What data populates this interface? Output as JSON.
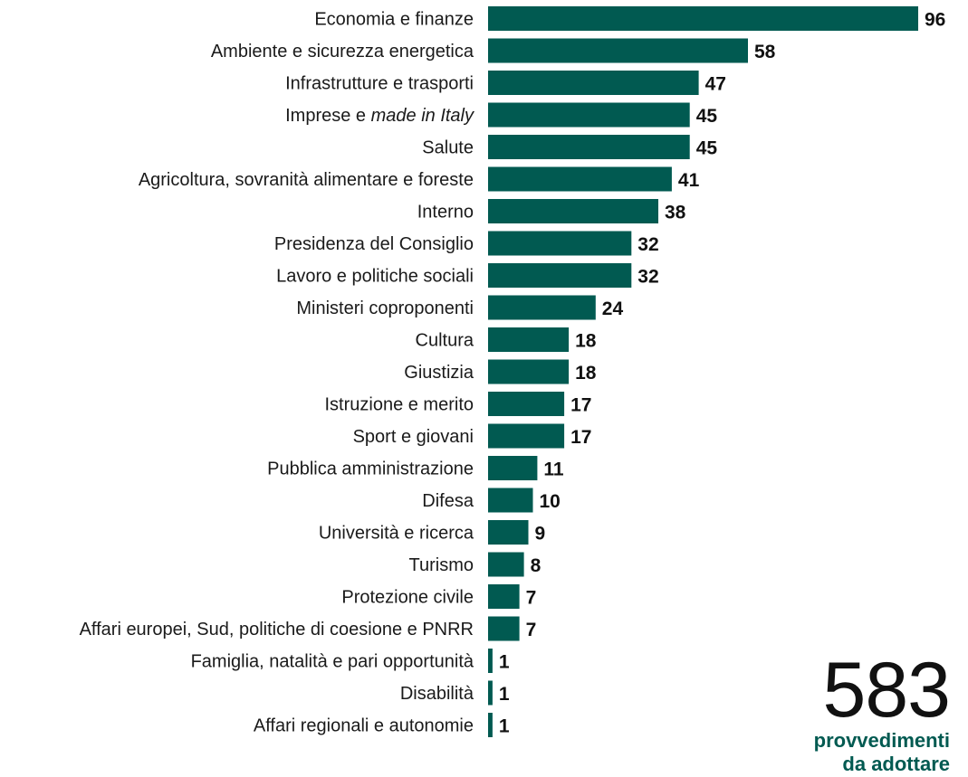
{
  "chart_data": {
    "type": "bar",
    "orientation": "horizontal",
    "categories": [
      "Economia e finanze",
      "Ambiente e sicurezza energetica",
      "Infrastrutture e trasporti",
      "Imprese e made in Italy",
      "Salute",
      "Agricoltura, sovranità alimentare e foreste",
      "Interno",
      "Presidenza del Consiglio",
      "Lavoro e politiche sociali",
      "Ministeri coproponenti",
      "Cultura",
      "Giustizia",
      "Istruzione e merito",
      "Sport e giovani",
      "Pubblica amministrazione",
      "Difesa",
      "Università e ricerca",
      "Turismo",
      "Protezione civile",
      "Affari europei, Sud, politiche di coesione e PNRR",
      "Famiglia, natalità e pari opportunità",
      "Disabilità",
      "Affari regionali e autonomie"
    ],
    "values": [
      96,
      58,
      47,
      45,
      45,
      41,
      38,
      32,
      32,
      24,
      18,
      18,
      17,
      17,
      11,
      10,
      9,
      8,
      7,
      7,
      1,
      1,
      1
    ],
    "italic_fragments": {
      "3": "made in Italy"
    },
    "xlim": [
      0,
      96
    ],
    "grid": false,
    "legend": "none",
    "bar_color": "#015a51"
  },
  "total": {
    "number": "583",
    "caption_line1": "provvedimenti",
    "caption_line2": "da adottare",
    "caption_color": "#015a51"
  }
}
